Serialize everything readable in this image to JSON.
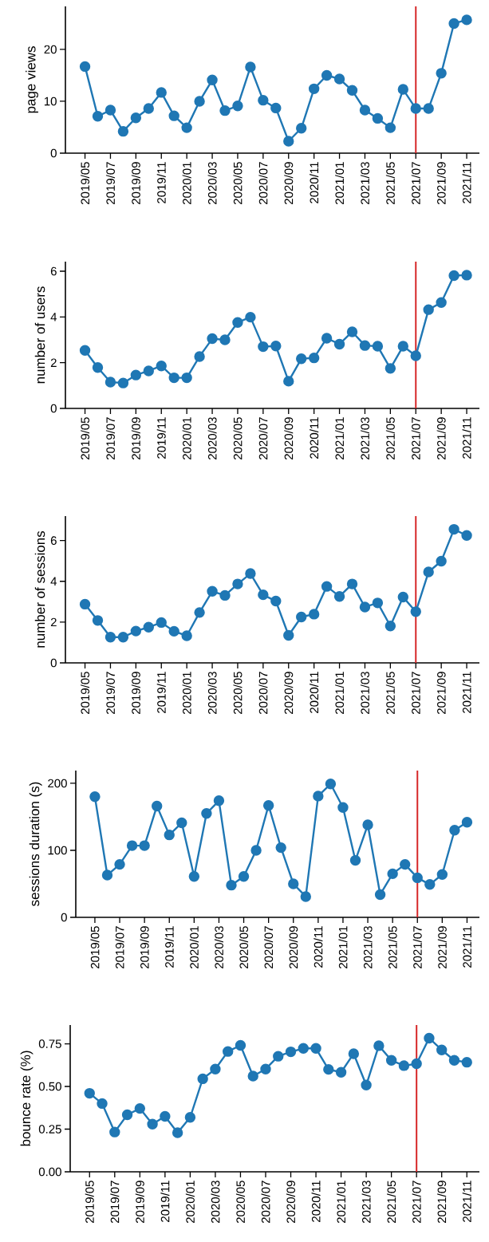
{
  "chart_data": [
    {
      "type": "line",
      "ylabel": "page views",
      "color": "#1f77b4",
      "marker": "circle",
      "line_style": "solid",
      "x": [
        "2019-05",
        "2019-06",
        "2019-07",
        "2019-08",
        "2019-09",
        "2019-10",
        "2019-11",
        "2019-12",
        "2020-01",
        "2020-02",
        "2020-03",
        "2020-04",
        "2020-05",
        "2020-06",
        "2020-07",
        "2020-08",
        "2020-09",
        "2020-10",
        "2020-11",
        "2020-12",
        "2021-01",
        "2021-02",
        "2021-03",
        "2021-04",
        "2021-05",
        "2021-06",
        "2021-07",
        "2021-08",
        "2021-09",
        "2021-10",
        "2021-11"
      ],
      "values": [
        16.7,
        7.1,
        8.3,
        4.2,
        6.8,
        8.6,
        11.7,
        7.2,
        4.9,
        10.0,
        14.1,
        8.2,
        9.1,
        16.6,
        10.2,
        8.7,
        2.3,
        4.8,
        12.4,
        15.0,
        14.3,
        12.1,
        8.3,
        6.7,
        4.9,
        12.3,
        8.6,
        8.6,
        15.4,
        25.0,
        25.7
      ],
      "xlim": [
        "2019-03-15",
        "2021-12-01"
      ],
      "xticks": [
        {
          "value": "2019-05",
          "label": "2019/05"
        },
        {
          "value": "2019-07",
          "label": "2019/07"
        },
        {
          "value": "2019-09",
          "label": "2019/09"
        },
        {
          "value": "2019-11",
          "label": "2019/11"
        },
        {
          "value": "2020-01",
          "label": "2020/01"
        },
        {
          "value": "2020-03",
          "label": "2020/03"
        },
        {
          "value": "2020-05",
          "label": "2020/05"
        },
        {
          "value": "2020-07",
          "label": "2020/07"
        },
        {
          "value": "2020-09",
          "label": "2020/09"
        },
        {
          "value": "2020-11",
          "label": "2020/11"
        },
        {
          "value": "2021-01",
          "label": "2021/01"
        },
        {
          "value": "2021-03",
          "label": "2021/03"
        },
        {
          "value": "2021-05",
          "label": "2021/05"
        },
        {
          "value": "2021-07",
          "label": "2021/07"
        },
        {
          "value": "2021-09",
          "label": "2021/09"
        },
        {
          "value": "2021-11",
          "label": "2021/11"
        }
      ],
      "ylim": [
        0,
        28.3
      ],
      "yticks": [
        0,
        10,
        20
      ],
      "ref_lines": [
        {
          "axis": "x",
          "value": "2021-07",
          "color": "#d62728"
        }
      ]
    },
    {
      "type": "line",
      "ylabel": "number of users",
      "color": "#1f77b4",
      "marker": "circle",
      "line_style": "solid",
      "x": [
        "2019-05",
        "2019-06",
        "2019-07",
        "2019-08",
        "2019-09",
        "2019-10",
        "2019-11",
        "2019-12",
        "2020-01",
        "2020-02",
        "2020-03",
        "2020-04",
        "2020-05",
        "2020-06",
        "2020-07",
        "2020-08",
        "2020-09",
        "2020-10",
        "2020-11",
        "2020-12",
        "2021-01",
        "2021-02",
        "2021-03",
        "2021-04",
        "2021-05",
        "2021-06",
        "2021-07",
        "2021-08",
        "2021-09",
        "2021-10",
        "2021-11"
      ],
      "values": [
        2.54,
        1.79,
        1.15,
        1.11,
        1.46,
        1.64,
        1.86,
        1.34,
        1.34,
        2.27,
        3.05,
        3.0,
        3.76,
        3.99,
        2.7,
        2.73,
        1.19,
        2.17,
        2.21,
        3.07,
        2.81,
        3.35,
        2.75,
        2.72,
        1.75,
        2.72,
        2.3,
        4.32,
        4.63,
        5.81,
        5.83
      ],
      "xlim": [
        "2019-03-15",
        "2021-12-01"
      ],
      "xticks": [
        {
          "value": "2019-05",
          "label": "2019/05"
        },
        {
          "value": "2019-07",
          "label": "2019/07"
        },
        {
          "value": "2019-09",
          "label": "2019/09"
        },
        {
          "value": "2019-11",
          "label": "2019/11"
        },
        {
          "value": "2020-01",
          "label": "2020/01"
        },
        {
          "value": "2020-03",
          "label": "2020/03"
        },
        {
          "value": "2020-05",
          "label": "2020/05"
        },
        {
          "value": "2020-07",
          "label": "2020/07"
        },
        {
          "value": "2020-09",
          "label": "2020/09"
        },
        {
          "value": "2020-11",
          "label": "2020/11"
        },
        {
          "value": "2021-01",
          "label": "2021/01"
        },
        {
          "value": "2021-03",
          "label": "2021/03"
        },
        {
          "value": "2021-05",
          "label": "2021/05"
        },
        {
          "value": "2021-07",
          "label": "2021/07"
        },
        {
          "value": "2021-09",
          "label": "2021/09"
        },
        {
          "value": "2021-11",
          "label": "2021/11"
        }
      ],
      "ylim": [
        0,
        6.42
      ],
      "yticks": [
        0,
        2,
        4,
        6
      ],
      "ref_lines": [
        {
          "axis": "x",
          "value": "2021-07",
          "color": "#d62728"
        }
      ]
    },
    {
      "type": "line",
      "ylabel": "number of sessions",
      "color": "#1f77b4",
      "marker": "circle",
      "line_style": "solid",
      "x": [
        "2019-05",
        "2019-06",
        "2019-07",
        "2019-08",
        "2019-09",
        "2019-10",
        "2019-11",
        "2019-12",
        "2020-01",
        "2020-02",
        "2020-03",
        "2020-04",
        "2020-05",
        "2020-06",
        "2020-07",
        "2020-08",
        "2020-09",
        "2020-10",
        "2020-11",
        "2020-12",
        "2021-01",
        "2021-02",
        "2021-03",
        "2021-04",
        "2021-05",
        "2021-06",
        "2021-07",
        "2021-08",
        "2021-09",
        "2021-10",
        "2021-11"
      ],
      "values": [
        2.88,
        2.08,
        1.26,
        1.26,
        1.56,
        1.75,
        1.98,
        1.55,
        1.33,
        2.47,
        3.51,
        3.31,
        3.87,
        4.38,
        3.34,
        3.03,
        1.35,
        2.25,
        2.39,
        3.75,
        3.26,
        3.87,
        2.74,
        2.94,
        1.81,
        3.23,
        2.51,
        4.46,
        4.99,
        6.55,
        6.25
      ],
      "xlim": [
        "2019-03-15",
        "2021-12-01"
      ],
      "xticks": [
        {
          "value": "2019-05",
          "label": "2019/05"
        },
        {
          "value": "2019-07",
          "label": "2019/07"
        },
        {
          "value": "2019-09",
          "label": "2019/09"
        },
        {
          "value": "2019-11",
          "label": "2019/11"
        },
        {
          "value": "2020-01",
          "label": "2020/01"
        },
        {
          "value": "2020-03",
          "label": "2020/03"
        },
        {
          "value": "2020-05",
          "label": "2020/05"
        },
        {
          "value": "2020-07",
          "label": "2020/07"
        },
        {
          "value": "2020-09",
          "label": "2020/09"
        },
        {
          "value": "2020-11",
          "label": "2020/11"
        },
        {
          "value": "2021-01",
          "label": "2021/01"
        },
        {
          "value": "2021-03",
          "label": "2021/03"
        },
        {
          "value": "2021-05",
          "label": "2021/05"
        },
        {
          "value": "2021-07",
          "label": "2021/07"
        },
        {
          "value": "2021-09",
          "label": "2021/09"
        },
        {
          "value": "2021-11",
          "label": "2021/11"
        }
      ],
      "ylim": [
        0,
        7.2
      ],
      "yticks": [
        0,
        2,
        4,
        6
      ],
      "ref_lines": [
        {
          "axis": "x",
          "value": "2021-07",
          "color": "#d62728"
        }
      ]
    },
    {
      "type": "line",
      "ylabel": "sessions duration (s)",
      "color": "#1f77b4",
      "marker": "circle",
      "line_style": "solid",
      "x": [
        "2019-05",
        "2019-06",
        "2019-07",
        "2019-08",
        "2019-09",
        "2019-10",
        "2019-11",
        "2019-12",
        "2020-01",
        "2020-02",
        "2020-03",
        "2020-04",
        "2020-05",
        "2020-06",
        "2020-07",
        "2020-08",
        "2020-09",
        "2020-10",
        "2020-11",
        "2020-12",
        "2021-01",
        "2021-02",
        "2021-03",
        "2021-04",
        "2021-05",
        "2021-06",
        "2021-07",
        "2021-08",
        "2021-09",
        "2021-10",
        "2021-11"
      ],
      "values": [
        180,
        63,
        79,
        107,
        107,
        166,
        123,
        141,
        61,
        155,
        174,
        48,
        61,
        100,
        167,
        104,
        50,
        31,
        181,
        199,
        164,
        85,
        138,
        34,
        65,
        79,
        59,
        49,
        64,
        130,
        142
      ],
      "xlim": [
        "2019-03-15",
        "2021-12-01"
      ],
      "xticks": [
        {
          "value": "2019-05",
          "label": "2019/05"
        },
        {
          "value": "2019-07",
          "label": "2019/07"
        },
        {
          "value": "2019-09",
          "label": "2019/09"
        },
        {
          "value": "2019-11",
          "label": "2019/11"
        },
        {
          "value": "2020-01",
          "label": "2020/01"
        },
        {
          "value": "2020-03",
          "label": "2020/03"
        },
        {
          "value": "2020-05",
          "label": "2020/05"
        },
        {
          "value": "2020-07",
          "label": "2020/07"
        },
        {
          "value": "2020-09",
          "label": "2020/09"
        },
        {
          "value": "2020-11",
          "label": "2020/11"
        },
        {
          "value": "2021-01",
          "label": "2021/01"
        },
        {
          "value": "2021-03",
          "label": "2021/03"
        },
        {
          "value": "2021-05",
          "label": "2021/05"
        },
        {
          "value": "2021-07",
          "label": "2021/07"
        },
        {
          "value": "2021-09",
          "label": "2021/09"
        },
        {
          "value": "2021-11",
          "label": "2021/11"
        }
      ],
      "ylim": [
        0,
        219
      ],
      "yticks": [
        0,
        100,
        200
      ],
      "ref_lines": [
        {
          "axis": "x",
          "value": "2021-07",
          "color": "#d62728"
        }
      ]
    },
    {
      "type": "line",
      "ylabel": "bounce rate (%)",
      "color": "#1f77b4",
      "marker": "circle",
      "line_style": "solid",
      "x": [
        "2019-05",
        "2019-06",
        "2019-07",
        "2019-08",
        "2019-09",
        "2019-10",
        "2019-11",
        "2019-12",
        "2020-01",
        "2020-02",
        "2020-03",
        "2020-04",
        "2020-05",
        "2020-06",
        "2020-07",
        "2020-08",
        "2020-09",
        "2020-10",
        "2020-11",
        "2020-12",
        "2021-01",
        "2021-02",
        "2021-03",
        "2021-04",
        "2021-05",
        "2021-06",
        "2021-07",
        "2021-08",
        "2021-09",
        "2021-10",
        "2021-11"
      ],
      "values": [
        0.46,
        0.4,
        0.233,
        0.334,
        0.371,
        0.279,
        0.325,
        0.229,
        0.319,
        0.545,
        0.602,
        0.705,
        0.741,
        0.561,
        0.602,
        0.677,
        0.703,
        0.723,
        0.723,
        0.6,
        0.583,
        0.692,
        0.508,
        0.739,
        0.653,
        0.622,
        0.633,
        0.783,
        0.714,
        0.653,
        0.642
      ],
      "xlim": [
        "2019-03-15",
        "2021-12-01"
      ],
      "xticks": [
        {
          "value": "2019-05",
          "label": "2019/05"
        },
        {
          "value": "2019-07",
          "label": "2019/07"
        },
        {
          "value": "2019-09",
          "label": "2019/09"
        },
        {
          "value": "2019-11",
          "label": "2019/11"
        },
        {
          "value": "2020-01",
          "label": "2020/01"
        },
        {
          "value": "2020-03",
          "label": "2020/03"
        },
        {
          "value": "2020-05",
          "label": "2020/05"
        },
        {
          "value": "2020-07",
          "label": "2020/07"
        },
        {
          "value": "2020-09",
          "label": "2020/09"
        },
        {
          "value": "2020-11",
          "label": "2020/11"
        },
        {
          "value": "2021-01",
          "label": "2021/01"
        },
        {
          "value": "2021-03",
          "label": "2021/03"
        },
        {
          "value": "2021-05",
          "label": "2021/05"
        },
        {
          "value": "2021-07",
          "label": "2021/07"
        },
        {
          "value": "2021-09",
          "label": "2021/09"
        },
        {
          "value": "2021-11",
          "label": "2021/11"
        }
      ],
      "ylim": [
        0,
        0.86
      ],
      "yticks": [
        {
          "value": 0,
          "label": "0.00"
        },
        {
          "value": 0.25,
          "label": "0.25"
        },
        {
          "value": 0.5,
          "label": "0.50"
        },
        {
          "value": 0.75,
          "label": "0.75"
        }
      ],
      "ref_lines": [
        {
          "axis": "x",
          "value": "2021-07",
          "color": "#d62728"
        }
      ]
    }
  ]
}
